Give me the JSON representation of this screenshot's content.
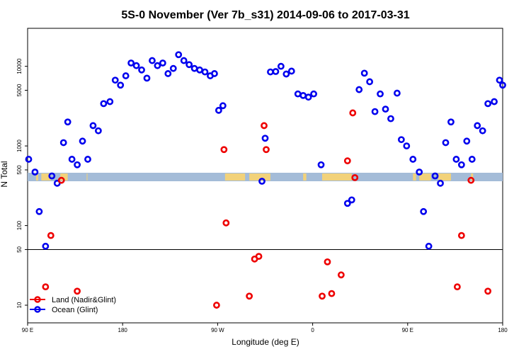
{
  "chart_data": {
    "type": "scatter",
    "title": "5S-0 November (Ver 7b_s31)   2014-09-06 to 2017-03-31",
    "xlabel": "Longitude (deg E)",
    "ylabel": "N Total",
    "x_ticks": [
      {
        "value": 90,
        "label": "90 E"
      },
      {
        "value": 180,
        "label": "180"
      },
      {
        "value": 270,
        "label": "90 W"
      },
      {
        "value": 360,
        "label": "0"
      },
      {
        "value": 450,
        "label": "90 E"
      },
      {
        "value": 540,
        "label": "180"
      }
    ],
    "xlim": [
      90,
      540
    ],
    "y_ticks": [
      {
        "value": 10,
        "label": "10"
      },
      {
        "value": 50,
        "label": "50"
      },
      {
        "value": 100,
        "label": "100"
      },
      {
        "value": 500,
        "label": "500"
      },
      {
        "value": 1000,
        "label": "1000"
      },
      {
        "value": 5000,
        "label": "5000"
      },
      {
        "value": 10000,
        "label": "10000"
      }
    ],
    "ylim": [
      6,
      30000
    ],
    "y_scale": "log",
    "reference_line_y": 50,
    "map_band": {
      "label": "land/sea strip",
      "ocean_color": "#a4bcd8",
      "land_color": "#f2d27a"
    },
    "legend_position": "bottom-left",
    "series": [
      {
        "name": "Land (Nadir&Glint)",
        "color": "#ee0000",
        "points": [
          [
            107,
            17
          ],
          [
            112,
            75
          ],
          [
            122,
            370
          ],
          [
            137,
            15
          ],
          [
            269,
            10
          ],
          [
            276,
            900
          ],
          [
            278,
            108
          ],
          [
            300,
            13
          ],
          [
            305,
            38
          ],
          [
            309,
            41
          ],
          [
            314,
            1800
          ],
          [
            316,
            900
          ],
          [
            369,
            13
          ],
          [
            374,
            35
          ],
          [
            378,
            14
          ],
          [
            387,
            24
          ],
          [
            393,
            650
          ],
          [
            398,
            2600
          ],
          [
            400,
            400
          ],
          [
            497,
            17
          ],
          [
            501,
            75
          ],
          [
            510,
            370
          ],
          [
            526,
            15
          ]
        ]
      },
      {
        "name": "Ocean (Glint)",
        "color": "#0000ee",
        "points": [
          [
            91,
            680
          ],
          [
            97,
            470
          ],
          [
            101,
            150
          ],
          [
            107,
            55
          ],
          [
            113,
            420
          ],
          [
            118,
            340
          ],
          [
            124,
            1100
          ],
          [
            128,
            2000
          ],
          [
            132,
            680
          ],
          [
            137,
            580
          ],
          [
            142,
            1150
          ],
          [
            147,
            680
          ],
          [
            152,
            1800
          ],
          [
            157,
            1550
          ],
          [
            162,
            3400
          ],
          [
            168,
            3600
          ],
          [
            173,
            6700
          ],
          [
            178,
            5800
          ],
          [
            183,
            7600
          ],
          [
            188,
            11000
          ],
          [
            193,
            10200
          ],
          [
            198,
            9000
          ],
          [
            203,
            7100
          ],
          [
            208,
            11800
          ],
          [
            213,
            10200
          ],
          [
            218,
            11000
          ],
          [
            223,
            8100
          ],
          [
            228,
            9400
          ],
          [
            233,
            14000
          ],
          [
            238,
            11800
          ],
          [
            243,
            10500
          ],
          [
            248,
            9400
          ],
          [
            253,
            9000
          ],
          [
            258,
            8500
          ],
          [
            263,
            7600
          ],
          [
            267,
            8100
          ],
          [
            271,
            2800
          ],
          [
            275,
            3200
          ],
          [
            312,
            360
          ],
          [
            315,
            1250
          ],
          [
            320,
            8500
          ],
          [
            325,
            8600
          ],
          [
            330,
            10000
          ],
          [
            335,
            8000
          ],
          [
            340,
            8700
          ],
          [
            346,
            4500
          ],
          [
            351,
            4300
          ],
          [
            356,
            4100
          ],
          [
            361,
            4500
          ],
          [
            368,
            580
          ],
          [
            393,
            190
          ],
          [
            397,
            210
          ],
          [
            404,
            5100
          ],
          [
            409,
            8200
          ],
          [
            414,
            6400
          ],
          [
            419,
            2700
          ],
          [
            424,
            4500
          ],
          [
            429,
            2900
          ],
          [
            434,
            2200
          ],
          [
            440,
            4600
          ],
          [
            444,
            1200
          ],
          [
            449,
            1000
          ],
          [
            455,
            680
          ],
          [
            461,
            470
          ],
          [
            465,
            150
          ],
          [
            470,
            55
          ],
          [
            476,
            420
          ],
          [
            481,
            340
          ],
          [
            486,
            1100
          ],
          [
            491,
            2000
          ],
          [
            496,
            680
          ],
          [
            501,
            580
          ],
          [
            506,
            1150
          ],
          [
            511,
            680
          ],
          [
            516,
            1800
          ],
          [
            521,
            1550
          ],
          [
            526,
            3400
          ],
          [
            532,
            3600
          ],
          [
            537,
            6700
          ],
          [
            540,
            5800
          ]
        ]
      }
    ]
  }
}
